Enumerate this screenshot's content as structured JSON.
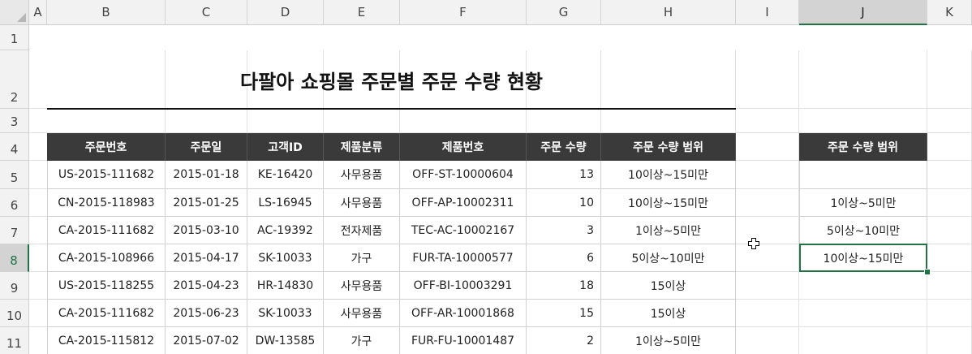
{
  "columns": [
    "A",
    "B",
    "C",
    "D",
    "E",
    "F",
    "G",
    "H",
    "I",
    "J",
    "K"
  ],
  "rows": [
    "1",
    "2",
    "3",
    "4",
    "5",
    "6",
    "7",
    "8",
    "9",
    "10",
    "11"
  ],
  "selected_column": "J",
  "selected_row": "8",
  "title": "다팔아 쇼핑몰 주문별 주문 수량 현황",
  "table": {
    "headers": [
      "주문번호",
      "주문일",
      "고객ID",
      "제품분류",
      "제품번호",
      "주문 수량",
      "주문 수량 범위"
    ],
    "rows": [
      [
        "US-2015-111682",
        "2015-01-18",
        "KE-16420",
        "사무용품",
        "OFF-ST-10000604",
        "13",
        "10이상~15미만"
      ],
      [
        "CN-2015-118983",
        "2015-01-25",
        "LS-16945",
        "사무용품",
        "OFF-AP-10002311",
        "10",
        "10이상~15미만"
      ],
      [
        "CA-2015-111682",
        "2015-03-10",
        "AC-19392",
        "전자제품",
        "TEC-AC-10002167",
        "3",
        "1이상~5미만"
      ],
      [
        "CA-2015-108966",
        "2015-04-17",
        "SK-10033",
        "가구",
        "FUR-TA-10000577",
        "6",
        "5이상~10미만"
      ],
      [
        "US-2015-118255",
        "2015-04-23",
        "HR-14830",
        "사무용품",
        "OFF-BI-10003291",
        "18",
        "15이상"
      ],
      [
        "CA-2015-111682",
        "2015-06-23",
        "SK-10033",
        "사무용품",
        "OFF-AR-10001868",
        "15",
        "15이상"
      ],
      [
        "CA-2015-115812",
        "2015-07-02",
        "DW-13585",
        "가구",
        "FUR-FU-10001487",
        "2",
        "1이상~5미만"
      ]
    ]
  },
  "range_table": {
    "header": "주문 수량 범위",
    "values": [
      "",
      "1이상~5미만",
      "5이상~10미만",
      "10이상~15미만"
    ]
  },
  "colors": {
    "header_bg": "#3a3a3a",
    "selection": "#217346"
  }
}
